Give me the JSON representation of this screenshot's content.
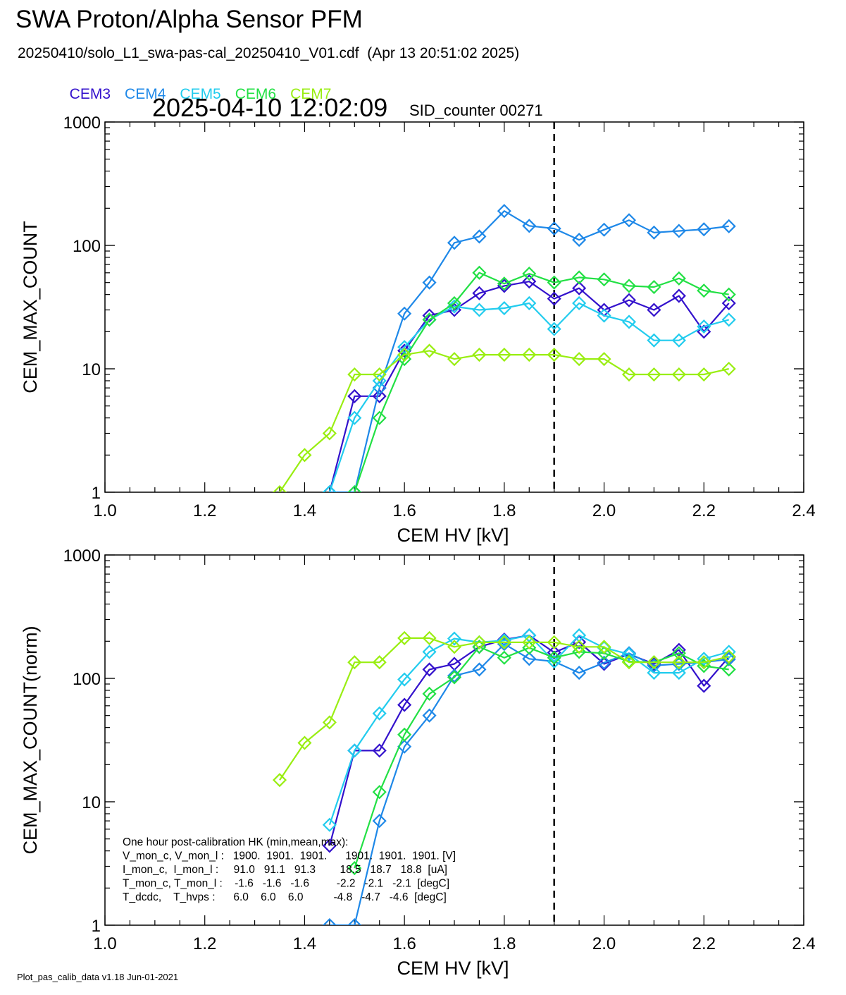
{
  "header": {
    "title": "SWA Proton/Alpha Sensor PFM",
    "subtitle": "20250410/solo_L1_swa-pas-cal_20250410_V01.cdf  (Apr 13 20:51:02 2025)",
    "timestamp": "2025-04-10 12:02:09",
    "sid": "SID_counter 00271"
  },
  "legend": [
    {
      "name": "CEM3",
      "color": "#3311cc"
    },
    {
      "name": "CEM4",
      "color": "#1e88e8"
    },
    {
      "name": "CEM5",
      "color": "#22ccee"
    },
    {
      "name": "CEM6",
      "color": "#22e044"
    },
    {
      "name": "CEM7",
      "color": "#99ee11"
    }
  ],
  "footer": "Plot_pas_calib_data v1.18 Jun-01-2021",
  "hk_box": {
    "lines": [
      "One hour post-calibration HK (min,mean,max):",
      "V_mon_c, V_mon_l :   1900.  1901.  1901.      1901.  1901.  1901. [V]",
      "I_mon_c,  I_mon_l :     91.0   91.1   91.3        18.5   18.7   18.8  [uA]",
      "T_mon_c, T_mon_l :    -1.6   -1.6   -1.6         -2.2   -2.1   -2.1  [degC]",
      "T_dcdc,    T_hvps :      6.0    6.0    6.0          -4.8   -4.7   -4.6  [degC]"
    ]
  },
  "chart_data": [
    {
      "type": "line",
      "scale": "log-y",
      "xlabel": "CEM HV [kV]",
      "ylabel": "CEM_MAX_COUNT",
      "xlim": [
        1.0,
        2.4
      ],
      "ylim": [
        1,
        1000
      ],
      "xticks": [
        "1.0",
        "1.2",
        "1.4",
        "1.6",
        "1.8",
        "2.0",
        "2.2",
        "2.4"
      ],
      "yticks": [
        "1",
        "10",
        "100",
        "1000"
      ],
      "vline": 1.9,
      "marker": "diamond",
      "series": [
        {
          "name": "CEM3",
          "color": "#3311cc",
          "x": [
            1.45,
            1.5,
            1.55,
            1.6,
            1.65,
            1.7,
            1.75,
            1.8,
            1.85,
            1.9,
            1.95,
            2.0,
            2.05,
            2.1,
            2.15,
            2.2,
            2.25
          ],
          "y": [
            1,
            6,
            6,
            14,
            27,
            30,
            41,
            47,
            51,
            37,
            45,
            30,
            36,
            30,
            39,
            20,
            34
          ]
        },
        {
          "name": "CEM4",
          "color": "#1e88e8",
          "x": [
            1.45,
            1.5,
            1.55,
            1.6,
            1.65,
            1.7,
            1.75,
            1.8,
            1.85,
            1.9,
            1.95,
            2.0,
            2.05,
            2.1,
            2.15,
            2.2,
            2.25
          ],
          "y": [
            1,
            1,
            7,
            28,
            50,
            105,
            118,
            190,
            144,
            137,
            111,
            134,
            160,
            127,
            131,
            135,
            143
          ]
        },
        {
          "name": "CEM5",
          "color": "#22ccee",
          "x": [
            1.45,
            1.5,
            1.55,
            1.6,
            1.65,
            1.7,
            1.75,
            1.8,
            1.85,
            1.9,
            1.95,
            2.0,
            2.05,
            2.1,
            2.15,
            2.2,
            2.25
          ],
          "y": [
            1,
            4,
            8,
            15,
            25,
            32,
            30,
            31,
            34,
            21,
            34,
            27,
            24,
            17,
            17,
            22,
            25
          ]
        },
        {
          "name": "CEM6",
          "color": "#22e044",
          "x": [
            1.5,
            1.55,
            1.6,
            1.65,
            1.7,
            1.75,
            1.8,
            1.85,
            1.9,
            1.95,
            2.0,
            2.05,
            2.1,
            2.15,
            2.2,
            2.25
          ],
          "y": [
            1,
            4,
            12,
            25,
            34,
            60,
            49,
            59,
            50,
            55,
            53,
            47,
            46,
            54,
            43,
            40
          ]
        },
        {
          "name": "CEM7",
          "color": "#99ee11",
          "x": [
            1.35,
            1.4,
            1.45,
            1.5,
            1.55,
            1.6,
            1.65,
            1.7,
            1.75,
            1.8,
            1.85,
            1.9,
            1.95,
            2.0,
            2.05,
            2.1,
            2.15,
            2.2,
            2.25
          ],
          "y": [
            1,
            2,
            3,
            9,
            9,
            13,
            14,
            12,
            13,
            13,
            13,
            13,
            12,
            12,
            9,
            9,
            9,
            9,
            10
          ]
        }
      ]
    },
    {
      "type": "line",
      "scale": "log-y",
      "xlabel": "CEM HV [kV]",
      "ylabel": "CEM_MAX_COUNT(norm)",
      "xlim": [
        1.0,
        2.4
      ],
      "ylim": [
        1,
        1000
      ],
      "xticks": [
        "1.0",
        "1.2",
        "1.4",
        "1.6",
        "1.8",
        "2.0",
        "2.2",
        "2.4"
      ],
      "yticks": [
        "1",
        "10",
        "100",
        "1000"
      ],
      "vline": 1.9,
      "marker": "diamond",
      "series": [
        {
          "name": "CEM3",
          "color": "#3311cc",
          "x": [
            1.45,
            1.5,
            1.55,
            1.6,
            1.65,
            1.7,
            1.75,
            1.8,
            1.85,
            1.9,
            1.95,
            2.0,
            2.05,
            2.1,
            2.15,
            2.2,
            2.25
          ],
          "y": [
            4.4,
            26,
            26,
            61,
            118,
            131,
            180,
            206,
            223,
            162,
            197,
            131,
            157,
            131,
            170,
            87,
            149
          ]
        },
        {
          "name": "CEM4",
          "color": "#1e88e8",
          "x": [
            1.45,
            1.5,
            1.55,
            1.6,
            1.65,
            1.7,
            1.75,
            1.8,
            1.85,
            1.9,
            1.95,
            2.0,
            2.05,
            2.1,
            2.15,
            2.2,
            2.25
          ],
          "y": [
            1,
            1,
            7,
            28,
            50,
            105,
            118,
            190,
            144,
            137,
            111,
            134,
            160,
            127,
            131,
            135,
            143
          ]
        },
        {
          "name": "CEM5",
          "color": "#22ccee",
          "x": [
            1.45,
            1.5,
            1.55,
            1.6,
            1.65,
            1.7,
            1.75,
            1.8,
            1.85,
            1.9,
            1.95,
            2.0,
            2.05,
            2.1,
            2.15,
            2.2,
            2.25
          ],
          "y": [
            6.5,
            26,
            52,
            98,
            164,
            210,
            196,
            203,
            223,
            137,
            223,
            177,
            157,
            111,
            111,
            144,
            164
          ]
        },
        {
          "name": "CEM6",
          "color": "#22e044",
          "x": [
            1.5,
            1.55,
            1.6,
            1.65,
            1.7,
            1.75,
            1.8,
            1.85,
            1.9,
            1.95,
            2.0,
            2.05,
            2.1,
            2.15,
            2.2,
            2.25
          ],
          "y": [
            2.9,
            12,
            35,
            75,
            102,
            180,
            147,
            177,
            147,
            164,
            160,
            137,
            135,
            160,
            126,
            118
          ]
        },
        {
          "name": "CEM7",
          "color": "#99ee11",
          "x": [
            1.35,
            1.4,
            1.45,
            1.5,
            1.55,
            1.6,
            1.65,
            1.7,
            1.75,
            1.8,
            1.85,
            1.9,
            1.95,
            2.0,
            2.05,
            2.1,
            2.15,
            2.2,
            2.25
          ],
          "y": [
            15,
            30,
            44,
            135,
            135,
            212,
            212,
            180,
            196,
            196,
            196,
            196,
            180,
            180,
            135,
            135,
            135,
            135,
            150
          ]
        }
      ]
    }
  ]
}
